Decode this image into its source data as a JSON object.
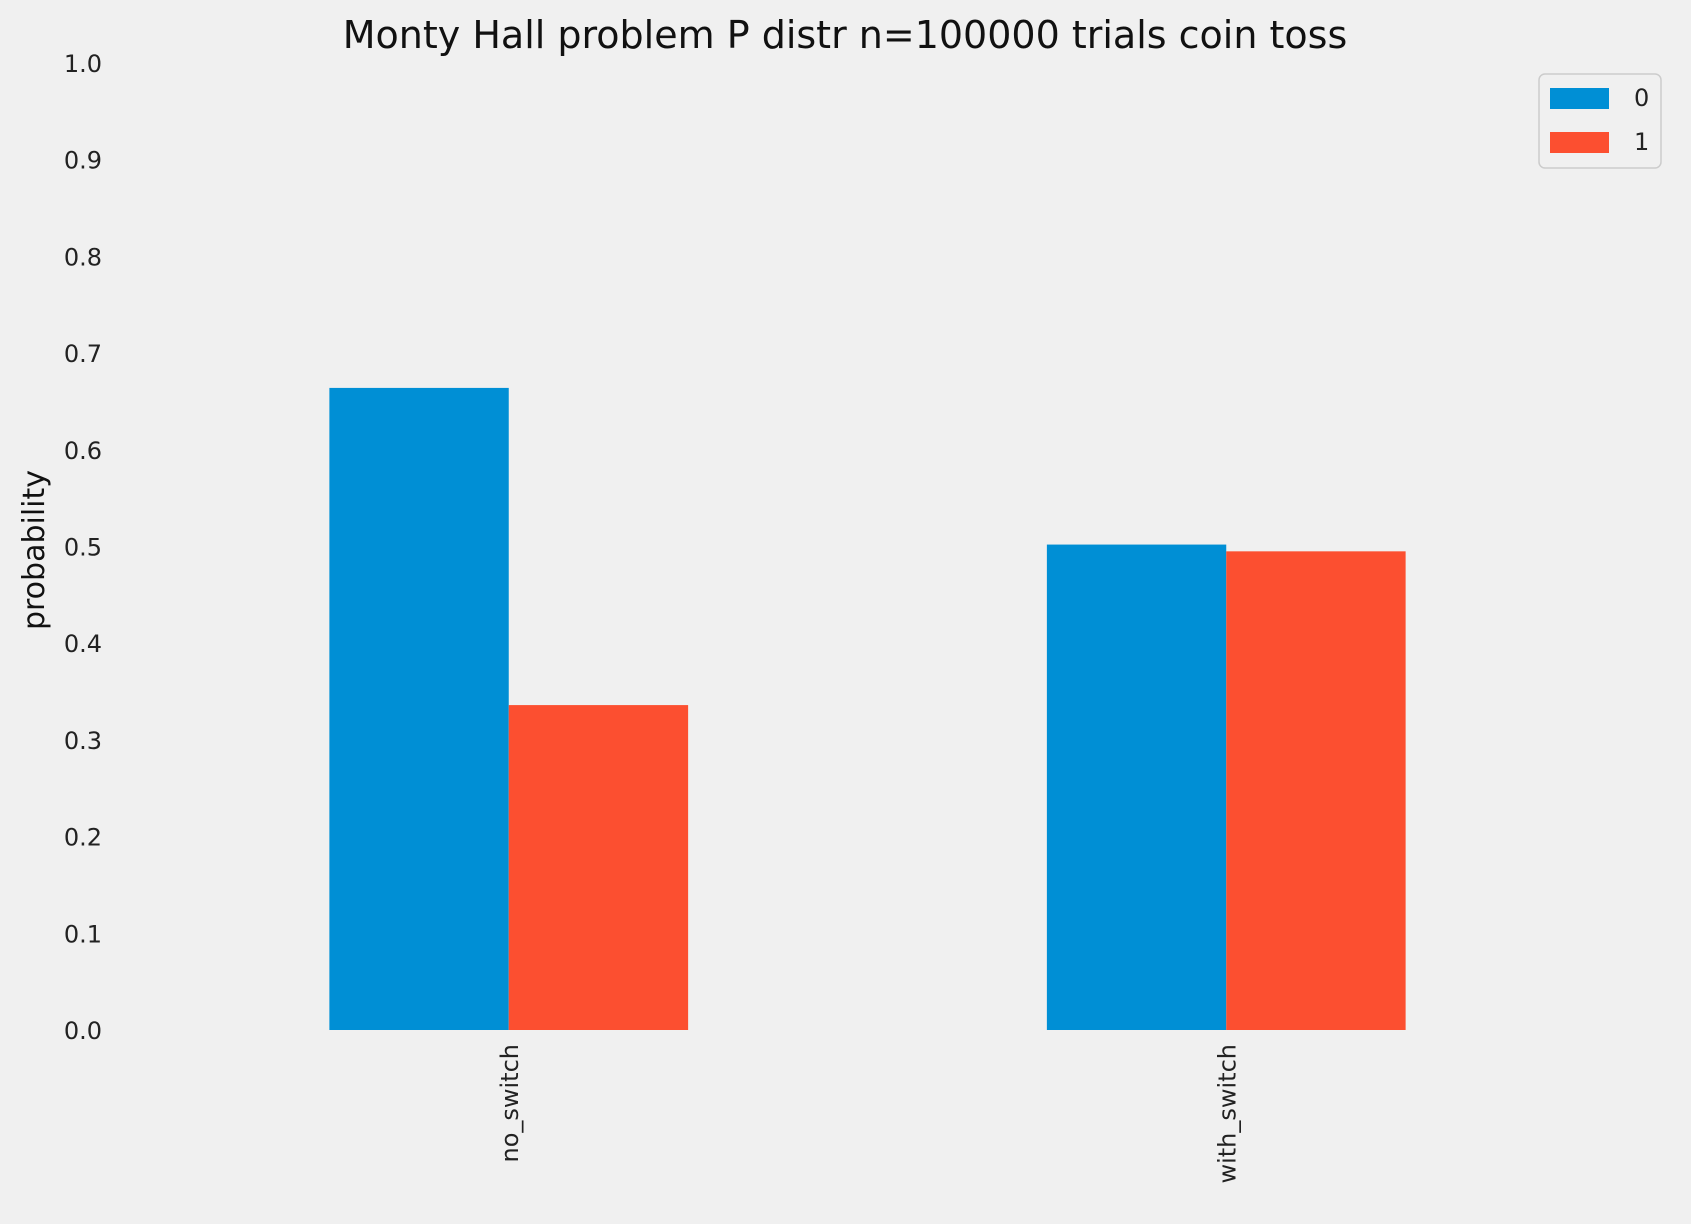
{
  "chart_data": {
    "type": "bar",
    "title": "Monty Hall problem P distr n=100000 trials coin toss",
    "xlabel": "",
    "ylabel": "probability",
    "ylim": [
      0,
      1.0
    ],
    "yticks": [
      "0.0",
      "0.1",
      "0.2",
      "0.3",
      "0.4",
      "0.5",
      "0.6",
      "0.7",
      "0.8",
      "0.9",
      "1.0"
    ],
    "categories": [
      "no_switch",
      "with_switch"
    ],
    "series": [
      {
        "name": "0",
        "color": "#008fd5",
        "values": [
          0.664,
          0.502
        ]
      },
      {
        "name": "1",
        "color": "#fc4f30",
        "values": [
          0.336,
          0.495
        ]
      }
    ],
    "grid": false,
    "legend_position": "top-right",
    "x_tick_rotation": "vertical"
  }
}
